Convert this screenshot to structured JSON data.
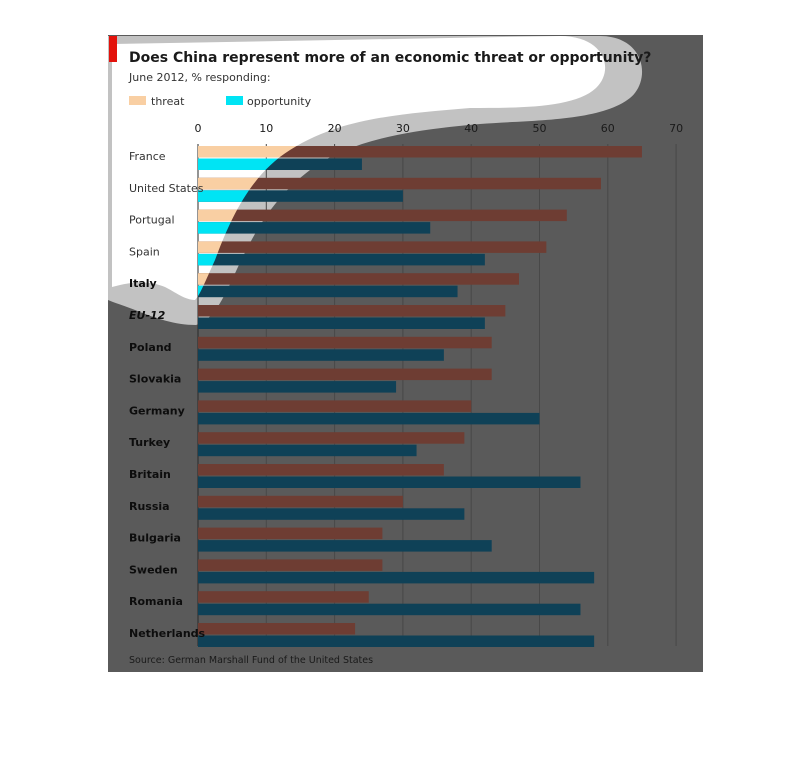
{
  "chart_data": {
    "type": "bar",
    "orientation": "horizontal",
    "title": "Does China represent more of an economic threat or opportunity?",
    "subtitle": "June 2012, % responding:",
    "source": "Source: German Marshall Fund of the United States",
    "categories": [
      "France",
      "United States",
      "Portugal",
      "Spain",
      "Italy",
      "EU-12",
      "Poland",
      "Slovakia",
      "Germany",
      "Turkey",
      "Britain",
      "Russia",
      "Bulgaria",
      "Sweden",
      "Romania",
      "Netherlands"
    ],
    "series": [
      {
        "name": "threat",
        "values": [
          65,
          59,
          54,
          51,
          47,
          45,
          43,
          43,
          40,
          39,
          36,
          30,
          27,
          27,
          25,
          23
        ]
      },
      {
        "name": "opportunity",
        "values": [
          24,
          30,
          34,
          42,
          38,
          42,
          36,
          29,
          50,
          32,
          56,
          39,
          43,
          58,
          56,
          58
        ]
      }
    ],
    "x_ticks": [
      "0",
      "10",
      "20",
      "30",
      "40",
      "50",
      "60",
      "70"
    ],
    "xlim": [
      0,
      70
    ],
    "grid": true,
    "legend_position": "top-left",
    "colors": {
      "threat": "#f9cfa3",
      "opportunity": "#00e4f4",
      "threat_shaded": "#6e3d33",
      "opportunity_shaded": "#0f4157",
      "accent": "#e3120b",
      "overlay": "#5a5a5a"
    }
  }
}
